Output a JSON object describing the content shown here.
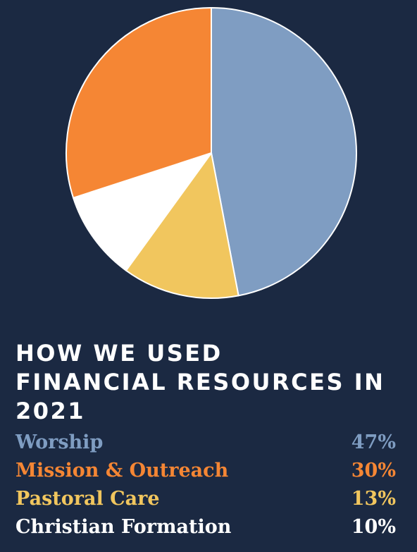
{
  "chart_data": {
    "type": "pie",
    "title_lines": [
      "HOW WE USED",
      "FINANCIAL RESOURCES IN",
      "2021"
    ],
    "categories": [
      "Worship",
      "Mission & Outreach",
      "Pastoral Care",
      "Christian Formation"
    ],
    "values": [
      47,
      30,
      13,
      10
    ],
    "value_labels": [
      "47%",
      "30%",
      "13%",
      "10%"
    ],
    "colors": [
      "#7f9dc2",
      "#f58634",
      "#f1c65e",
      "#ffffff"
    ],
    "slice_order": [
      "Worship",
      "Pastoral Care",
      "Christian Formation",
      "Mission & Outreach"
    ],
    "start_angle": "12 o'clock",
    "direction": "clockwise",
    "slice_border_color": "#ffffff",
    "legend_position": "bottom"
  }
}
